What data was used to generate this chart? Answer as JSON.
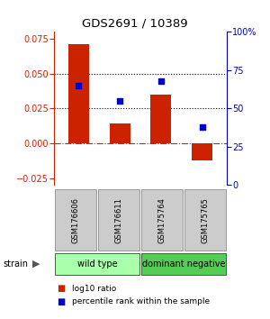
{
  "title": "GDS2691 / 10389",
  "samples": [
    "GSM176606",
    "GSM176611",
    "GSM175764",
    "GSM175765"
  ],
  "log10_ratio": [
    0.071,
    0.014,
    0.035,
    -0.012
  ],
  "percentile_rank": [
    65,
    55,
    68,
    38
  ],
  "bar_color": "#cc2200",
  "dot_color": "#0000cc",
  "ylim_left": [
    -0.03,
    0.08
  ],
  "ylim_right": [
    0,
    100
  ],
  "yticks_left": [
    -0.025,
    0,
    0.025,
    0.05,
    0.075
  ],
  "yticks_right": [
    0,
    25,
    50,
    75,
    100
  ],
  "ytick_labels_right": [
    "0",
    "25",
    "50",
    "75",
    "100%"
  ],
  "hlines": [
    0.025,
    0.05
  ],
  "zero_line": 0.0,
  "groups": [
    {
      "label": "wild type",
      "samples": [
        0,
        1
      ],
      "color": "#aaffaa"
    },
    {
      "label": "dominant negative",
      "samples": [
        2,
        3
      ],
      "color": "#55cc55"
    }
  ],
  "strain_label": "strain",
  "legend_red": "log10 ratio",
  "legend_blue": "percentile rank within the sample",
  "bg_color": "#ffffff",
  "sample_box_color": "#cccccc",
  "bar_width": 0.5
}
